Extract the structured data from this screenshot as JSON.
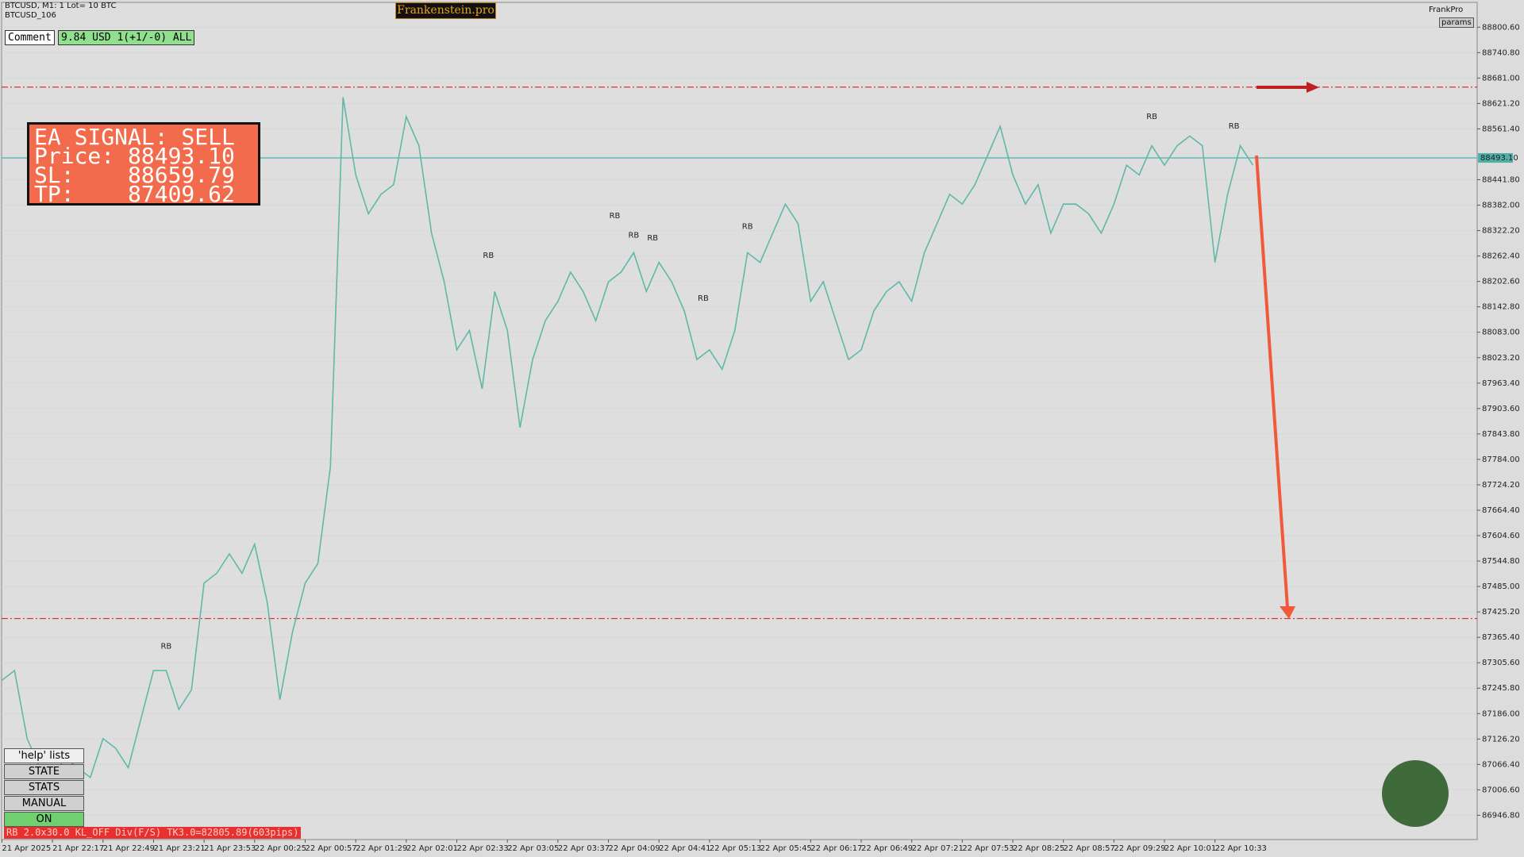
{
  "header": {
    "symbol": "BTCUSD, M1:  1 Lot= 10 BTC",
    "account": "BTCUSD_106",
    "brand": "Frankenstein.pro",
    "user": "FrankPro",
    "params": "params"
  },
  "comment": {
    "label": "Comment",
    "text": "9.84 USD 1(+1/-0) ALL"
  },
  "signal": {
    "lines": [
      "EA SIGNAL: SELL",
      "Price: 88493.10",
      "SL:    88659.79",
      "TP:    87409.62"
    ]
  },
  "buttons": [
    "'help' lists cmds",
    "STATE",
    "STATS",
    "MANUAL",
    "ON"
  ],
  "status": {
    "tag": "RB",
    "text": "2.0x30.0 KL_OFF Div(F/S) TK3.0=82805.89(603pips)"
  },
  "chart_data": {
    "type": "line",
    "categories": [
      "21 Apr 2025",
      null,
      null,
      null,
      "21 Apr 22:17",
      null,
      null,
      null,
      "21 Apr 22:49",
      null,
      null,
      null,
      "21 Apr 23:21",
      null,
      null,
      null,
      "21 Apr 23:53",
      null,
      null,
      null,
      "22 Apr 00:25",
      null,
      null,
      null,
      "22 Apr 00:57",
      null,
      null,
      null,
      "22 Apr 01:29",
      null,
      null,
      null,
      "22 Apr 02:01",
      null,
      null,
      null,
      "22 Apr 02:33",
      null,
      null,
      null,
      "22 Apr 03:05",
      null,
      null,
      null,
      "22 Apr 03:37",
      null,
      null,
      null,
      "22 Apr 04:09",
      null,
      null,
      null,
      "22 Apr 04:41",
      null,
      null,
      null,
      "22 Apr 05:13",
      null,
      null,
      null,
      "22 Apr 05:45",
      null,
      null,
      null,
      "22 Apr 06:17",
      null,
      null,
      null,
      "22 Apr 06:49",
      null,
      null,
      null,
      "22 Apr 07:21",
      null,
      null,
      null,
      "22 Apr 07:53",
      null,
      null,
      null,
      "22 Apr 08:25",
      null,
      null,
      null,
      "22 Apr 08:57",
      null,
      null,
      null,
      "22 Apr 09:29",
      null,
      null,
      null,
      "22 Apr 10:01",
      null,
      null,
      null,
      "22 Apr 10:33",
      null,
      null,
      null
    ],
    "color": "#5fb8a8",
    "values": [
      87264.4,
      87287.3,
      87127.2,
      87058.7,
      87035.8,
      87081.5,
      87058.7,
      87035.8,
      87127.2,
      87104.4,
      87058.7,
      87173.0,
      87287.3,
      87287.3,
      87195.8,
      87241.5,
      87493.0,
      87515.9,
      87561.6,
      87515.9,
      87584.4,
      87447.3,
      87218.7,
      87378.7,
      87493.0,
      87538.7,
      87767.3,
      88636.0,
      88453.1,
      88361.7,
      88407.4,
      88430.3,
      88590.3,
      88521.7,
      88316.0,
      88201.7,
      88041.6,
      88087.4,
      87950.2,
      88178.8,
      88087.4,
      87858.8,
      88018.8,
      88110.2,
      88155.9,
      88224.5,
      88178.8,
      88110.2,
      88201.7,
      88224.5,
      88270.2,
      88178.8,
      88247.4,
      88201.7,
      88133.1,
      88018.8,
      88041.6,
      87995.9,
      88087.4,
      88270.2,
      88247.4,
      88316.0,
      88384.5,
      88338.8,
      88155.9,
      88201.7,
      88110.2,
      88018.8,
      88041.6,
      88133.1,
      88178.8,
      88201.7,
      88155.9,
      88270.2,
      88338.8,
      88407.4,
      88384.5,
      88430.3,
      88498.8,
      88567.4,
      88453.1,
      88384.5,
      88430.3,
      88316.0,
      88384.5,
      88384.5,
      88361.7,
      88316.0,
      88384.5,
      88476.0,
      88453.1,
      88521.7,
      88476.0,
      88521.7,
      88544.6,
      88521.7,
      88247.4,
      88407.4,
      88521.7,
      88476.0
    ],
    "ylim": [
      86889.7,
      88857.7
    ],
    "yticks": [
      {
        "value": 88800.6,
        "label": "88800.60"
      },
      {
        "value": 88740.8,
        "label": "88740.80"
      },
      {
        "value": 88681,
        "label": "88681.00"
      },
      {
        "value": 88621.2,
        "label": "88621.20"
      },
      {
        "value": 88561.4,
        "label": "88561.40"
      },
      {
        "value": 88441.8,
        "label": "88441.80"
      },
      {
        "value": 88382,
        "label": "88382.00"
      },
      {
        "value": 88322.2,
        "label": "88322.20"
      },
      {
        "value": 88262.4,
        "label": "88262.40"
      },
      {
        "value": 88202.6,
        "label": "88202.60"
      },
      {
        "value": 88142.8,
        "label": "88142.80"
      },
      {
        "value": 88083,
        "label": "88083.00"
      },
      {
        "value": 88023.2,
        "label": "88023.20"
      },
      {
        "value": 87963.4,
        "label": "87963.40"
      },
      {
        "value": 87903.6,
        "label": "87903.60"
      },
      {
        "value": 87843.8,
        "label": "87843.80"
      },
      {
        "value": 87784,
        "label": "87784.00"
      },
      {
        "value": 87724.2,
        "label": "87724.20"
      },
      {
        "value": 87664.4,
        "label": "87664.40"
      },
      {
        "value": 87604.6,
        "label": "87604.60"
      },
      {
        "value": 87544.8,
        "label": "87544.80"
      },
      {
        "value": 87485,
        "label": "87485.00"
      },
      {
        "value": 87425.2,
        "label": "87425.20"
      },
      {
        "value": 87365.4,
        "label": "87365.40"
      },
      {
        "value": 87305.6,
        "label": "87305.60"
      },
      {
        "value": 87245.8,
        "label": "87245.80"
      },
      {
        "value": 87186,
        "label": "87186.00"
      },
      {
        "value": 87126.2,
        "label": "87126.20"
      },
      {
        "value": 87066.4,
        "label": "87066.40"
      },
      {
        "value": 87006.6,
        "label": "87006.60"
      },
      {
        "value": 86946.8,
        "label": "86946.80"
      }
    ],
    "grid": true,
    "levels": [
      {
        "value": 88659.79,
        "color": "#e03030",
        "style": "dashdot"
      },
      {
        "value": 87409.62,
        "color": "#e03030",
        "style": "dashdot"
      },
      {
        "value": 88493.1,
        "label": "88493.10",
        "color": "#4fb0a8",
        "style": "solid"
      }
    ],
    "annotations": [
      {
        "text": "RB",
        "x": 13,
        "y": 87344.4
      },
      {
        "text": "RB",
        "x": 38.5,
        "y": 88263.4
      },
      {
        "text": "RB",
        "x": 48.5,
        "y": 88357.1
      },
      {
        "text": "RB",
        "x": 50,
        "y": 88311.4
      },
      {
        "text": "RB",
        "x": 51.5,
        "y": 88304.5
      },
      {
        "text": "RB",
        "x": 55.5,
        "y": 88162.8
      },
      {
        "text": "RB",
        "x": 59,
        "y": 88332.0
      },
      {
        "text": "RB",
        "x": 91,
        "y": 88590.3
      },
      {
        "text": "RB",
        "x": 97.5,
        "y": 88567.4
      }
    ]
  }
}
